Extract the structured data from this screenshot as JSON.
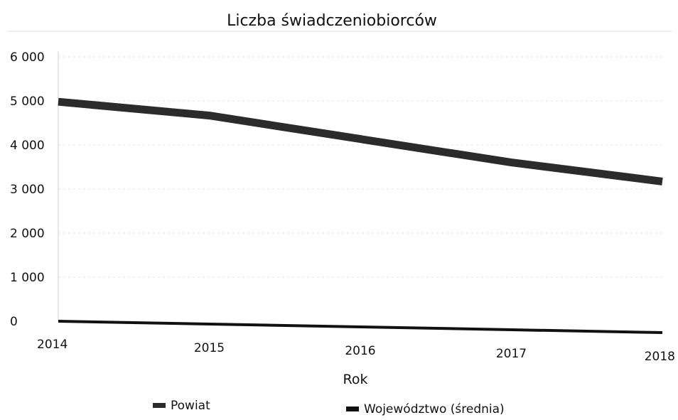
{
  "chart_data": {
    "type": "line",
    "title": "Liczba świadczeniobiorców",
    "xlabel": "Rok",
    "ylabel": "",
    "x": [
      "2014",
      "2015",
      "2016",
      "2017",
      "2018"
    ],
    "ylim": [
      0,
      6000
    ],
    "yticks": [
      0,
      1000,
      2000,
      3000,
      4000,
      5000,
      6000
    ],
    "ytick_labels": [
      "0",
      "1 000",
      "2 000",
      "3 000",
      "4 000",
      "5 000",
      "6 000"
    ],
    "grid": "horizontal, faint",
    "legend_position": "bottom",
    "series": [
      {
        "name": "Powiat",
        "values": [
          4980,
          4700,
          4200,
          3700,
          3300
        ],
        "color": "#2b2b2b",
        "style": "thick"
      },
      {
        "name": "Województwo (średnia)",
        "values": [
          0,
          0,
          0,
          0,
          0
        ],
        "color": "#111111",
        "style": "thin"
      }
    ]
  }
}
